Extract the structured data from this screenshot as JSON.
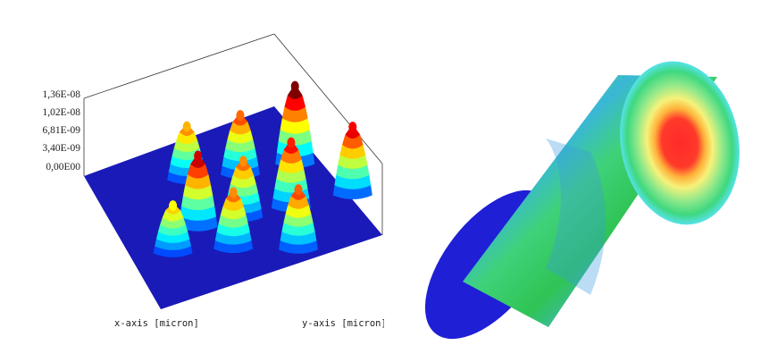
{
  "chart_data": [
    {
      "type": "surface",
      "z_tick_labels": [
        "1,36E-08",
        "1,02E-08",
        "6,81E-09",
        "3,40E-09",
        "0,00E00"
      ],
      "z_ticks": [
        1.36e-08,
        1.02e-08,
        6.81e-09,
        3.4e-09,
        0
      ],
      "zlim": [
        0,
        1.36e-08
      ],
      "xlabel": "x-axis [micron]",
      "ylabel": "y-axis [micron]",
      "colormap": "jet",
      "peaks": [
        {
          "x": -0.72,
          "y": 0.06,
          "z": 1.36e-08
        },
        {
          "x": -0.26,
          "y": 0.44,
          "z": 1.15e-08
        },
        {
          "x": 0.13,
          "y": 0.88,
          "z": 1.06e-08
        },
        {
          "x": -0.65,
          "y": 0.77,
          "z": 1.2e-08
        },
        {
          "x": 0.33,
          "y": -0.06,
          "z": 1.25e-08
        },
        {
          "x": 0.04,
          "y": 0.18,
          "z": 1e-08
        },
        {
          "x": -0.38,
          "y": -0.24,
          "z": 1.05e-08
        },
        {
          "x": 0.4,
          "y": 0.4,
          "z": 1e-08
        },
        {
          "x": -0.1,
          "y": -0.58,
          "z": 9.5e-09
        },
        {
          "x": 0.7,
          "y": 0.0,
          "z": 8.5e-09
        }
      ]
    },
    {
      "type": "cylinder-render",
      "colormap": "jet"
    }
  ],
  "colors": {
    "floor": "#1a1ab8",
    "box_line": "#333333",
    "cyl_end": "#1f1fd6"
  }
}
